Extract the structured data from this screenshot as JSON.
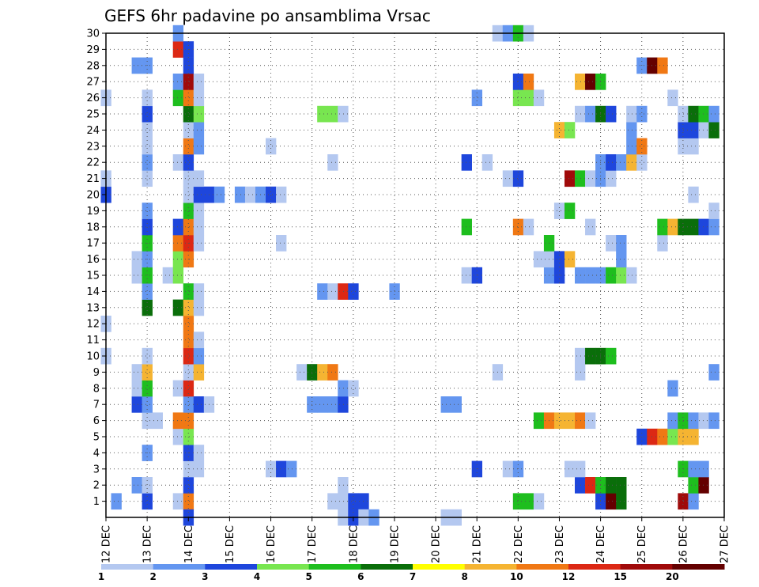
{
  "chart_data": {
    "type": "heatmap",
    "title": "GEFS 6hr padavine po ansamblima Vrsac",
    "xlabel": "",
    "ylabel": "",
    "x_tick_labels": [
      "12 DEC",
      "13 DEC",
      "14 DEC",
      "15 DEC",
      "16 DEC",
      "17 DEC",
      "18 DEC",
      "19 DEC",
      "20 DEC",
      "21 DEC",
      "22 DEC",
      "23 DEC",
      "24 DEC",
      "25 DEC",
      "26 DEC",
      "27 DEC"
    ],
    "x_range_days": [
      12,
      27
    ],
    "y_range": [
      0,
      30
    ],
    "y_tick_labels": [
      "1",
      "2",
      "3",
      "4",
      "5",
      "6",
      "7",
      "8",
      "9",
      "10",
      "11",
      "12",
      "13",
      "14",
      "15",
      "16",
      "17",
      "18",
      "19",
      "20",
      "21",
      "22",
      "23",
      "24",
      "25",
      "26",
      "27",
      "28",
      "29",
      "30"
    ],
    "grid": true,
    "legend": {
      "placement": "bottom",
      "labels": [
        "1",
        "2",
        "3",
        "4",
        "5",
        "6",
        "7",
        "8",
        "10",
        "12",
        "15",
        "20"
      ],
      "colors": [
        "#b4c8f0",
        "#6496f0",
        "#1e46dc",
        "#78e650",
        "#1ebe1e",
        "#0a6e0a",
        "#ffff00",
        "#f5b432",
        "#f07814",
        "#dc2814",
        "#a00a0a",
        "#640000"
      ]
    },
    "cells": [
      [
        12.25,
        1,
        2
      ],
      [
        13,
        1,
        3
      ],
      [
        13.75,
        1,
        1
      ],
      [
        14,
        1,
        10
      ],
      [
        17.5,
        1,
        1
      ],
      [
        17.75,
        1,
        1
      ],
      [
        18,
        1,
        3
      ],
      [
        18.25,
        1,
        3
      ],
      [
        22,
        1,
        5
      ],
      [
        22.25,
        1,
        5
      ],
      [
        22.5,
        1,
        1
      ],
      [
        24,
        1,
        3
      ],
      [
        24.25,
        1,
        20
      ],
      [
        24.5,
        1,
        6
      ],
      [
        26,
        1,
        15
      ],
      [
        26.25,
        1,
        2
      ],
      [
        12.75,
        2,
        2
      ],
      [
        13,
        2,
        1
      ],
      [
        14,
        2,
        3
      ],
      [
        17.75,
        2,
        1
      ],
      [
        23.5,
        2,
        3
      ],
      [
        23.75,
        2,
        12
      ],
      [
        24,
        2,
        5
      ],
      [
        24.25,
        2,
        6
      ],
      [
        24.5,
        2,
        6
      ],
      [
        26.25,
        2,
        5
      ],
      [
        26.5,
        2,
        20
      ],
      [
        14,
        3,
        1
      ],
      [
        14.25,
        3,
        1
      ],
      [
        16,
        3,
        1
      ],
      [
        16.25,
        3,
        3
      ],
      [
        16.5,
        3,
        2
      ],
      [
        21,
        3,
        3
      ],
      [
        21.75,
        3,
        1
      ],
      [
        22,
        3,
        2
      ],
      [
        23.25,
        3,
        1
      ],
      [
        23.5,
        3,
        1
      ],
      [
        26,
        3,
        5
      ],
      [
        26.25,
        3,
        2
      ],
      [
        26.5,
        3,
        2
      ],
      [
        13,
        4,
        2
      ],
      [
        14,
        4,
        3
      ],
      [
        14.25,
        4,
        1
      ],
      [
        13.75,
        5,
        1
      ],
      [
        14,
        5,
        4
      ],
      [
        25,
        5,
        3
      ],
      [
        25.25,
        5,
        12
      ],
      [
        25.5,
        5,
        10
      ],
      [
        25.75,
        5,
        4
      ],
      [
        26,
        5,
        8
      ],
      [
        26.25,
        5,
        8
      ],
      [
        13,
        6,
        1
      ],
      [
        13.25,
        6,
        1
      ],
      [
        13.75,
        6,
        10
      ],
      [
        14,
        6,
        10
      ],
      [
        22.5,
        6,
        5
      ],
      [
        22.75,
        6,
        10
      ],
      [
        23,
        6,
        8
      ],
      [
        23.25,
        6,
        8
      ],
      [
        23.5,
        6,
        10
      ],
      [
        23.75,
        6,
        1
      ],
      [
        25.75,
        6,
        2
      ],
      [
        26,
        6,
        5
      ],
      [
        26.25,
        6,
        2
      ],
      [
        26.5,
        6,
        1
      ],
      [
        26.75,
        6,
        2
      ],
      [
        12.75,
        7,
        3
      ],
      [
        13,
        7,
        2
      ],
      [
        14,
        7,
        2
      ],
      [
        14.25,
        7,
        3
      ],
      [
        14.5,
        7,
        1
      ],
      [
        17,
        7,
        2
      ],
      [
        17.25,
        7,
        2
      ],
      [
        17.5,
        7,
        2
      ],
      [
        17.75,
        7,
        3
      ],
      [
        20.25,
        7,
        2
      ],
      [
        20.5,
        7,
        2
      ],
      [
        12.75,
        8,
        1
      ],
      [
        13,
        8,
        5
      ],
      [
        13.75,
        8,
        1
      ],
      [
        14,
        8,
        12
      ],
      [
        17.75,
        8,
        2
      ],
      [
        18,
        8,
        1
      ],
      [
        25.75,
        8,
        2
      ],
      [
        12.75,
        9,
        1
      ],
      [
        13,
        9,
        8
      ],
      [
        14,
        9,
        1
      ],
      [
        14.25,
        9,
        8
      ],
      [
        16.75,
        9,
        1
      ],
      [
        17,
        9,
        6
      ],
      [
        17.25,
        9,
        8
      ],
      [
        17.5,
        9,
        10
      ],
      [
        21.5,
        9,
        1
      ],
      [
        23.5,
        9,
        1
      ],
      [
        26.75,
        9,
        2
      ],
      [
        12,
        10,
        1
      ],
      [
        13,
        10,
        1
      ],
      [
        14,
        10,
        12
      ],
      [
        14.25,
        10,
        2
      ],
      [
        23.5,
        10,
        1
      ],
      [
        23.75,
        10,
        6
      ],
      [
        24,
        10,
        6
      ],
      [
        24.25,
        10,
        5
      ],
      [
        14,
        11,
        10
      ],
      [
        14.25,
        11,
        1
      ],
      [
        12,
        12,
        1
      ],
      [
        14,
        12,
        10
      ],
      [
        13,
        13,
        6
      ],
      [
        13.75,
        13,
        6
      ],
      [
        14,
        13,
        8
      ],
      [
        14.25,
        13,
        1
      ],
      [
        13,
        14,
        2
      ],
      [
        14,
        14,
        5
      ],
      [
        14.25,
        14,
        1
      ],
      [
        17.25,
        14,
        2
      ],
      [
        17.5,
        14,
        1
      ],
      [
        17.75,
        14,
        12
      ],
      [
        18,
        14,
        3
      ],
      [
        19,
        14,
        2
      ],
      [
        12.75,
        15,
        1
      ],
      [
        13,
        15,
        5
      ],
      [
        13.5,
        15,
        1
      ],
      [
        13.75,
        15,
        4
      ],
      [
        20.75,
        15,
        1
      ],
      [
        21,
        15,
        3
      ],
      [
        22.75,
        15,
        2
      ],
      [
        23,
        15,
        3
      ],
      [
        23.5,
        15,
        2
      ],
      [
        23.75,
        15,
        2
      ],
      [
        24,
        15,
        2
      ],
      [
        24.25,
        15,
        5
      ],
      [
        24.5,
        15,
        4
      ],
      [
        24.75,
        15,
        1
      ],
      [
        12.75,
        16,
        1
      ],
      [
        13,
        16,
        2
      ],
      [
        13.75,
        16,
        4
      ],
      [
        14,
        16,
        10
      ],
      [
        22.5,
        16,
        1
      ],
      [
        22.75,
        16,
        1
      ],
      [
        23,
        16,
        3
      ],
      [
        23.25,
        16,
        8
      ],
      [
        24.5,
        16,
        2
      ],
      [
        13,
        17,
        5
      ],
      [
        13.75,
        17,
        10
      ],
      [
        14,
        17,
        12
      ],
      [
        14.25,
        17,
        1
      ],
      [
        16.25,
        17,
        1
      ],
      [
        22.75,
        17,
        5
      ],
      [
        24.25,
        17,
        1
      ],
      [
        24.5,
        17,
        2
      ],
      [
        25.5,
        17,
        1
      ],
      [
        13,
        18,
        3
      ],
      [
        13.75,
        18,
        3
      ],
      [
        14,
        18,
        10
      ],
      [
        14.25,
        18,
        1
      ],
      [
        20.75,
        18,
        5
      ],
      [
        22,
        18,
        10
      ],
      [
        22.25,
        18,
        1
      ],
      [
        23.75,
        18,
        1
      ],
      [
        25.5,
        18,
        5
      ],
      [
        25.75,
        18,
        8
      ],
      [
        26,
        18,
        6
      ],
      [
        26.25,
        18,
        6
      ],
      [
        26.5,
        18,
        3
      ],
      [
        26.75,
        18,
        2
      ],
      [
        13,
        19,
        2
      ],
      [
        14,
        19,
        5
      ],
      [
        14.25,
        19,
        1
      ],
      [
        23,
        19,
        1
      ],
      [
        23.25,
        19,
        5
      ],
      [
        26.75,
        19,
        1
      ],
      [
        12,
        20,
        3
      ],
      [
        14,
        20,
        1
      ],
      [
        14.25,
        20,
        3
      ],
      [
        14.5,
        20,
        3
      ],
      [
        14.75,
        20,
        2
      ],
      [
        15.25,
        20,
        2
      ],
      [
        15.5,
        20,
        1
      ],
      [
        15.75,
        20,
        2
      ],
      [
        16,
        20,
        3
      ],
      [
        16.25,
        20,
        1
      ],
      [
        26.25,
        20,
        1
      ],
      [
        12,
        21,
        1
      ],
      [
        13,
        21,
        1
      ],
      [
        14,
        21,
        1
      ],
      [
        14.25,
        21,
        1
      ],
      [
        21.75,
        21,
        1
      ],
      [
        22,
        21,
        3
      ],
      [
        23.25,
        21,
        15
      ],
      [
        23.5,
        21,
        5
      ],
      [
        23.75,
        21,
        1
      ],
      [
        24,
        21,
        2
      ],
      [
        24.25,
        21,
        1
      ],
      [
        13,
        22,
        2
      ],
      [
        13.75,
        22,
        1
      ],
      [
        14,
        22,
        3
      ],
      [
        17.5,
        22,
        1
      ],
      [
        20.75,
        22,
        3
      ],
      [
        21.25,
        22,
        1
      ],
      [
        24,
        22,
        2
      ],
      [
        24.25,
        22,
        3
      ],
      [
        24.5,
        22,
        2
      ],
      [
        24.75,
        22,
        8
      ],
      [
        25,
        22,
        1
      ],
      [
        13,
        23,
        1
      ],
      [
        14,
        23,
        10
      ],
      [
        14.25,
        23,
        2
      ],
      [
        16,
        23,
        1
      ],
      [
        24.75,
        23,
        2
      ],
      [
        25,
        23,
        10
      ],
      [
        26,
        23,
        1
      ],
      [
        26.25,
        23,
        1
      ],
      [
        13,
        24,
        1
      ],
      [
        14,
        24,
        1
      ],
      [
        14.25,
        24,
        2
      ],
      [
        23,
        24,
        8
      ],
      [
        23.25,
        24,
        4
      ],
      [
        24.75,
        24,
        2
      ],
      [
        26,
        24,
        3
      ],
      [
        26.25,
        24,
        3
      ],
      [
        26.5,
        24,
        1
      ],
      [
        26.75,
        24,
        6
      ],
      [
        13,
        25,
        3
      ],
      [
        14,
        25,
        6
      ],
      [
        14.25,
        25,
        4
      ],
      [
        17.25,
        25,
        4
      ],
      [
        17.5,
        25,
        4
      ],
      [
        17.75,
        25,
        1
      ],
      [
        23.5,
        25,
        1
      ],
      [
        23.75,
        25,
        2
      ],
      [
        24,
        25,
        6
      ],
      [
        24.25,
        25,
        3
      ],
      [
        24.75,
        25,
        1
      ],
      [
        25,
        25,
        2
      ],
      [
        26,
        25,
        1
      ],
      [
        26.25,
        25,
        6
      ],
      [
        26.5,
        25,
        5
      ],
      [
        26.75,
        25,
        2
      ],
      [
        12,
        26,
        1
      ],
      [
        13,
        26,
        1
      ],
      [
        13.75,
        26,
        5
      ],
      [
        14,
        26,
        10
      ],
      [
        14.25,
        26,
        1
      ],
      [
        21,
        26,
        2
      ],
      [
        22,
        26,
        4
      ],
      [
        22.25,
        26,
        4
      ],
      [
        22.5,
        26,
        1
      ],
      [
        25.75,
        26,
        1
      ],
      [
        13.75,
        27,
        2
      ],
      [
        14,
        27,
        15
      ],
      [
        14.25,
        27,
        1
      ],
      [
        22,
        27,
        3
      ],
      [
        22.25,
        27,
        10
      ],
      [
        23.5,
        27,
        8
      ],
      [
        23.75,
        27,
        20
      ],
      [
        24,
        27,
        5
      ],
      [
        12.75,
        28,
        2
      ],
      [
        13,
        28,
        2
      ],
      [
        14,
        28,
        3
      ],
      [
        25,
        28,
        2
      ],
      [
        25.25,
        28,
        20
      ],
      [
        25.5,
        28,
        10
      ],
      [
        13.75,
        29,
        12
      ],
      [
        14,
        29,
        3
      ],
      [
        13.75,
        30,
        2
      ],
      [
        21.5,
        30,
        1
      ],
      [
        21.75,
        30,
        2
      ],
      [
        22,
        30,
        5
      ],
      [
        22.25,
        30,
        1
      ],
      [
        14,
        0,
        3
      ],
      [
        17.75,
        0,
        1
      ],
      [
        18,
        0,
        3
      ],
      [
        18.25,
        0,
        1
      ],
      [
        18.5,
        0,
        2
      ],
      [
        20.25,
        0,
        1
      ],
      [
        20.5,
        0,
        1
      ]
    ]
  }
}
